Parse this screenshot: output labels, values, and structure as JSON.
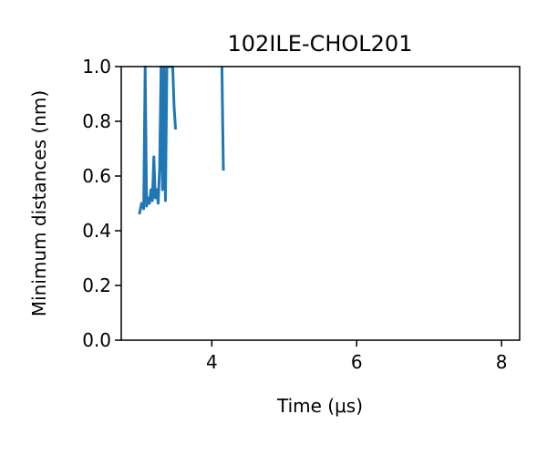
{
  "chart_data": {
    "type": "line",
    "title": "102ILE-CHOL201",
    "xlabel": "Time (μs)",
    "ylabel": "Minimum distances (nm)",
    "xlim": [
      2.75,
      8.25
    ],
    "ylim": [
      0.0,
      1.0
    ],
    "xticks": [
      4,
      6,
      8
    ],
    "yticks": [
      0.0,
      0.2,
      0.4,
      0.6,
      0.8,
      1.0
    ],
    "xtick_labels": [
      "4",
      "6",
      "8"
    ],
    "ytick_labels": [
      "0.0",
      "0.2",
      "0.4",
      "0.6",
      "0.8",
      "1.0"
    ],
    "grid": false,
    "series": [
      {
        "color": "#1f77b4",
        "segments": [
          {
            "x": [
              3.0,
              3.03,
              3.06,
              3.08,
              3.1,
              3.12,
              3.14,
              3.16,
              3.18,
              3.2,
              3.22,
              3.24,
              3.26,
              3.28,
              3.3,
              3.32,
              3.34,
              3.36,
              3.38,
              3.4,
              3.42,
              3.44,
              3.46,
              3.48,
              3.5
            ],
            "y": [
              0.46,
              0.5,
              0.48,
              1.0,
              0.49,
              0.52,
              0.5,
              0.55,
              0.51,
              0.67,
              0.52,
              0.55,
              0.5,
              0.63,
              1.0,
              0.55,
              1.0,
              0.51,
              1.0,
              1.0,
              1.0,
              1.0,
              1.0,
              0.85,
              0.77
            ]
          },
          {
            "x": [
              4.14,
              4.15,
              4.16
            ],
            "y": [
              1.0,
              0.8,
              0.62
            ]
          }
        ]
      }
    ]
  }
}
